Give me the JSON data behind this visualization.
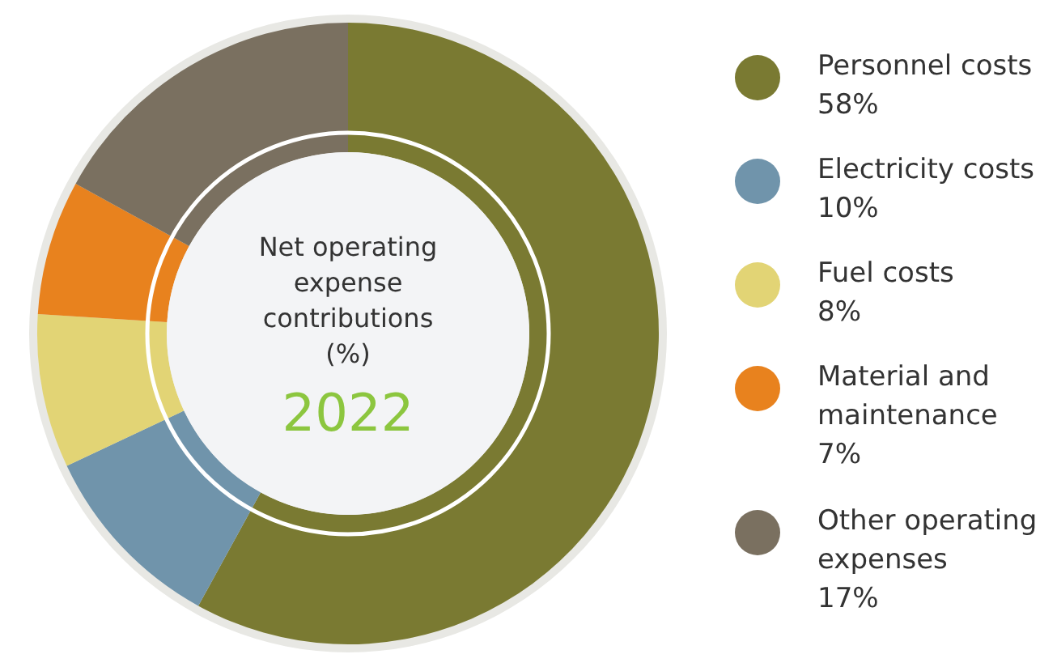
{
  "chart_data": {
    "type": "donut",
    "title": "Net operating expense contributions (%)",
    "subtitle": "2022",
    "categories": [
      "Personnel costs",
      "Electricity costs",
      "Fuel costs",
      "Material and maintenance",
      "Other operating expenses"
    ],
    "values": [
      58,
      10,
      8,
      7,
      17
    ],
    "value_labels": [
      "58%",
      "10%",
      "8%",
      "7%",
      "17%"
    ],
    "colors": [
      "#7a7a32",
      "#7094ab",
      "#e2d475",
      "#e8821e",
      "#7a7060"
    ],
    "legend": "right"
  }
}
